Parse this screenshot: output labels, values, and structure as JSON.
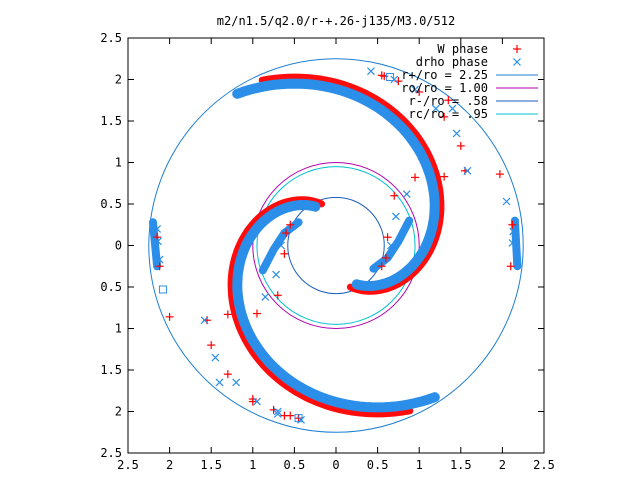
{
  "chart_data": {
    "type": "scatter",
    "title": "m2/n1.5/q2.0/r-+.26-j135/M3.0/512",
    "xlabel": "",
    "ylabel": "",
    "xlim": [
      -2.5,
      2.5
    ],
    "ylim": [
      -2.5,
      2.5
    ],
    "x_tick_labels": [
      "2.5",
      "2",
      "1.5",
      "1",
      "0.5",
      "0",
      "0.5",
      "1",
      "1.5",
      "2",
      "2.5"
    ],
    "y_tick_labels": [
      "2.5",
      "2",
      "1.5",
      "1",
      "0.5",
      "0",
      "0.5",
      "1",
      "1.5",
      "2",
      "2.5"
    ],
    "grid": false,
    "legend_position": "top-right",
    "spiral": {
      "inner_radius": 0.53,
      "outer_radius": 2.18,
      "turn_angle_deg": 185,
      "arm_angles_deg": [
        -62,
        118
      ],
      "inner_hook": [
        {
          "x": -0.45,
          "y": 0.28
        },
        {
          "x": -0.62,
          "y": 0.15
        },
        {
          "x": -0.75,
          "y": -0.05
        },
        {
          "x": -0.88,
          "y": -0.3
        }
      ]
    },
    "series": [
      {
        "name": "W phase",
        "marker": "plus",
        "color": "#ff0000",
        "points": [
          {
            "x": 0.55,
            "y": 2.05
          },
          {
            "x": 0.75,
            "y": 1.98
          },
          {
            "x": 1.0,
            "y": 1.85
          },
          {
            "x": 1.3,
            "y": 1.55
          },
          {
            "x": 1.5,
            "y": 1.2
          },
          {
            "x": 1.55,
            "y": 0.9
          },
          {
            "x": 1.3,
            "y": 0.83
          },
          {
            "x": 0.95,
            "y": 0.82
          },
          {
            "x": 0.7,
            "y": 0.6
          },
          {
            "x": 0.62,
            "y": 0.1
          },
          {
            "x": 0.6,
            "y": -0.15
          },
          {
            "x": 0.55,
            "y": -0.25
          },
          {
            "x": -0.55,
            "y": -2.05
          },
          {
            "x": -0.75,
            "y": -1.98
          },
          {
            "x": -1.0,
            "y": -1.85
          },
          {
            "x": -1.3,
            "y": -1.55
          },
          {
            "x": -1.5,
            "y": -1.2
          },
          {
            "x": -1.55,
            "y": -0.9
          },
          {
            "x": -1.3,
            "y": -0.83
          },
          {
            "x": -0.95,
            "y": -0.82
          },
          {
            "x": -0.7,
            "y": -0.6
          },
          {
            "x": -0.62,
            "y": -0.1
          },
          {
            "x": -0.6,
            "y": 0.15
          },
          {
            "x": -0.55,
            "y": 0.25
          },
          {
            "x": 1.97,
            "y": 0.86
          },
          {
            "x": 2.12,
            "y": 0.25
          },
          {
            "x": 2.1,
            "y": -0.25
          },
          {
            "x": -2.0,
            "y": -0.86
          },
          {
            "x": -2.12,
            "y": -0.25
          },
          {
            "x": -2.15,
            "y": 0.1
          },
          {
            "x": 0.58,
            "y": 2.04
          },
          {
            "x": -1.0,
            "y": -1.88
          },
          {
            "x": -0.62,
            "y": -2.05
          },
          {
            "x": -0.45,
            "y": -2.08
          },
          {
            "x": 1.35,
            "y": 1.75
          }
        ]
      },
      {
        "name": "drho phase",
        "marker": "cross",
        "color": "#2b8ee8",
        "points": [
          {
            "x": 0.42,
            "y": 2.1
          },
          {
            "x": 0.7,
            "y": 2.0
          },
          {
            "x": 0.95,
            "y": 1.88
          },
          {
            "x": 1.2,
            "y": 1.65
          },
          {
            "x": 1.45,
            "y": 1.35
          },
          {
            "x": 1.58,
            "y": 0.9
          },
          {
            "x": 0.85,
            "y": 0.62
          },
          {
            "x": 0.72,
            "y": 0.35
          },
          {
            "x": 0.66,
            "y": 0.0
          },
          {
            "x": -0.42,
            "y": -2.1
          },
          {
            "x": -0.7,
            "y": -2.0
          },
          {
            "x": -0.95,
            "y": -1.88
          },
          {
            "x": -1.2,
            "y": -1.65
          },
          {
            "x": -1.45,
            "y": -1.35
          },
          {
            "x": -1.58,
            "y": -0.9
          },
          {
            "x": -0.85,
            "y": -0.62
          },
          {
            "x": -0.72,
            "y": -0.35
          },
          {
            "x": -0.66,
            "y": 0.0
          },
          {
            "x": 2.05,
            "y": 0.53
          },
          {
            "x": 2.13,
            "y": 0.17
          },
          {
            "x": 2.12,
            "y": 0.03
          },
          {
            "x": -2.12,
            "y": -0.17
          },
          {
            "x": -2.14,
            "y": 0.05
          },
          {
            "x": -2.15,
            "y": 0.2
          },
          {
            "x": -1.4,
            "y": -1.65
          },
          {
            "x": -0.7,
            "y": -2.03
          },
          {
            "x": 1.4,
            "y": 1.65
          }
        ]
      }
    ],
    "isolated_squares": [
      {
        "x": 0.65,
        "y": 2.03
      },
      {
        "x": -2.08,
        "y": -0.53
      },
      {
        "x": -0.45,
        "y": -2.08
      }
    ],
    "circles": [
      {
        "name": "r+/ro = 2.25",
        "radius": 2.25,
        "color": "#1f7fd0"
      },
      {
        "name": "ro/ro = 1.00",
        "radius": 1.0,
        "color": "#b000b0"
      },
      {
        "name": "r-/ro = .58",
        "radius": 0.58,
        "color": "#1a5fc0"
      },
      {
        "name": "rc/ro = .95",
        "radius": 0.95,
        "color": "#00c0d0"
      }
    ]
  }
}
